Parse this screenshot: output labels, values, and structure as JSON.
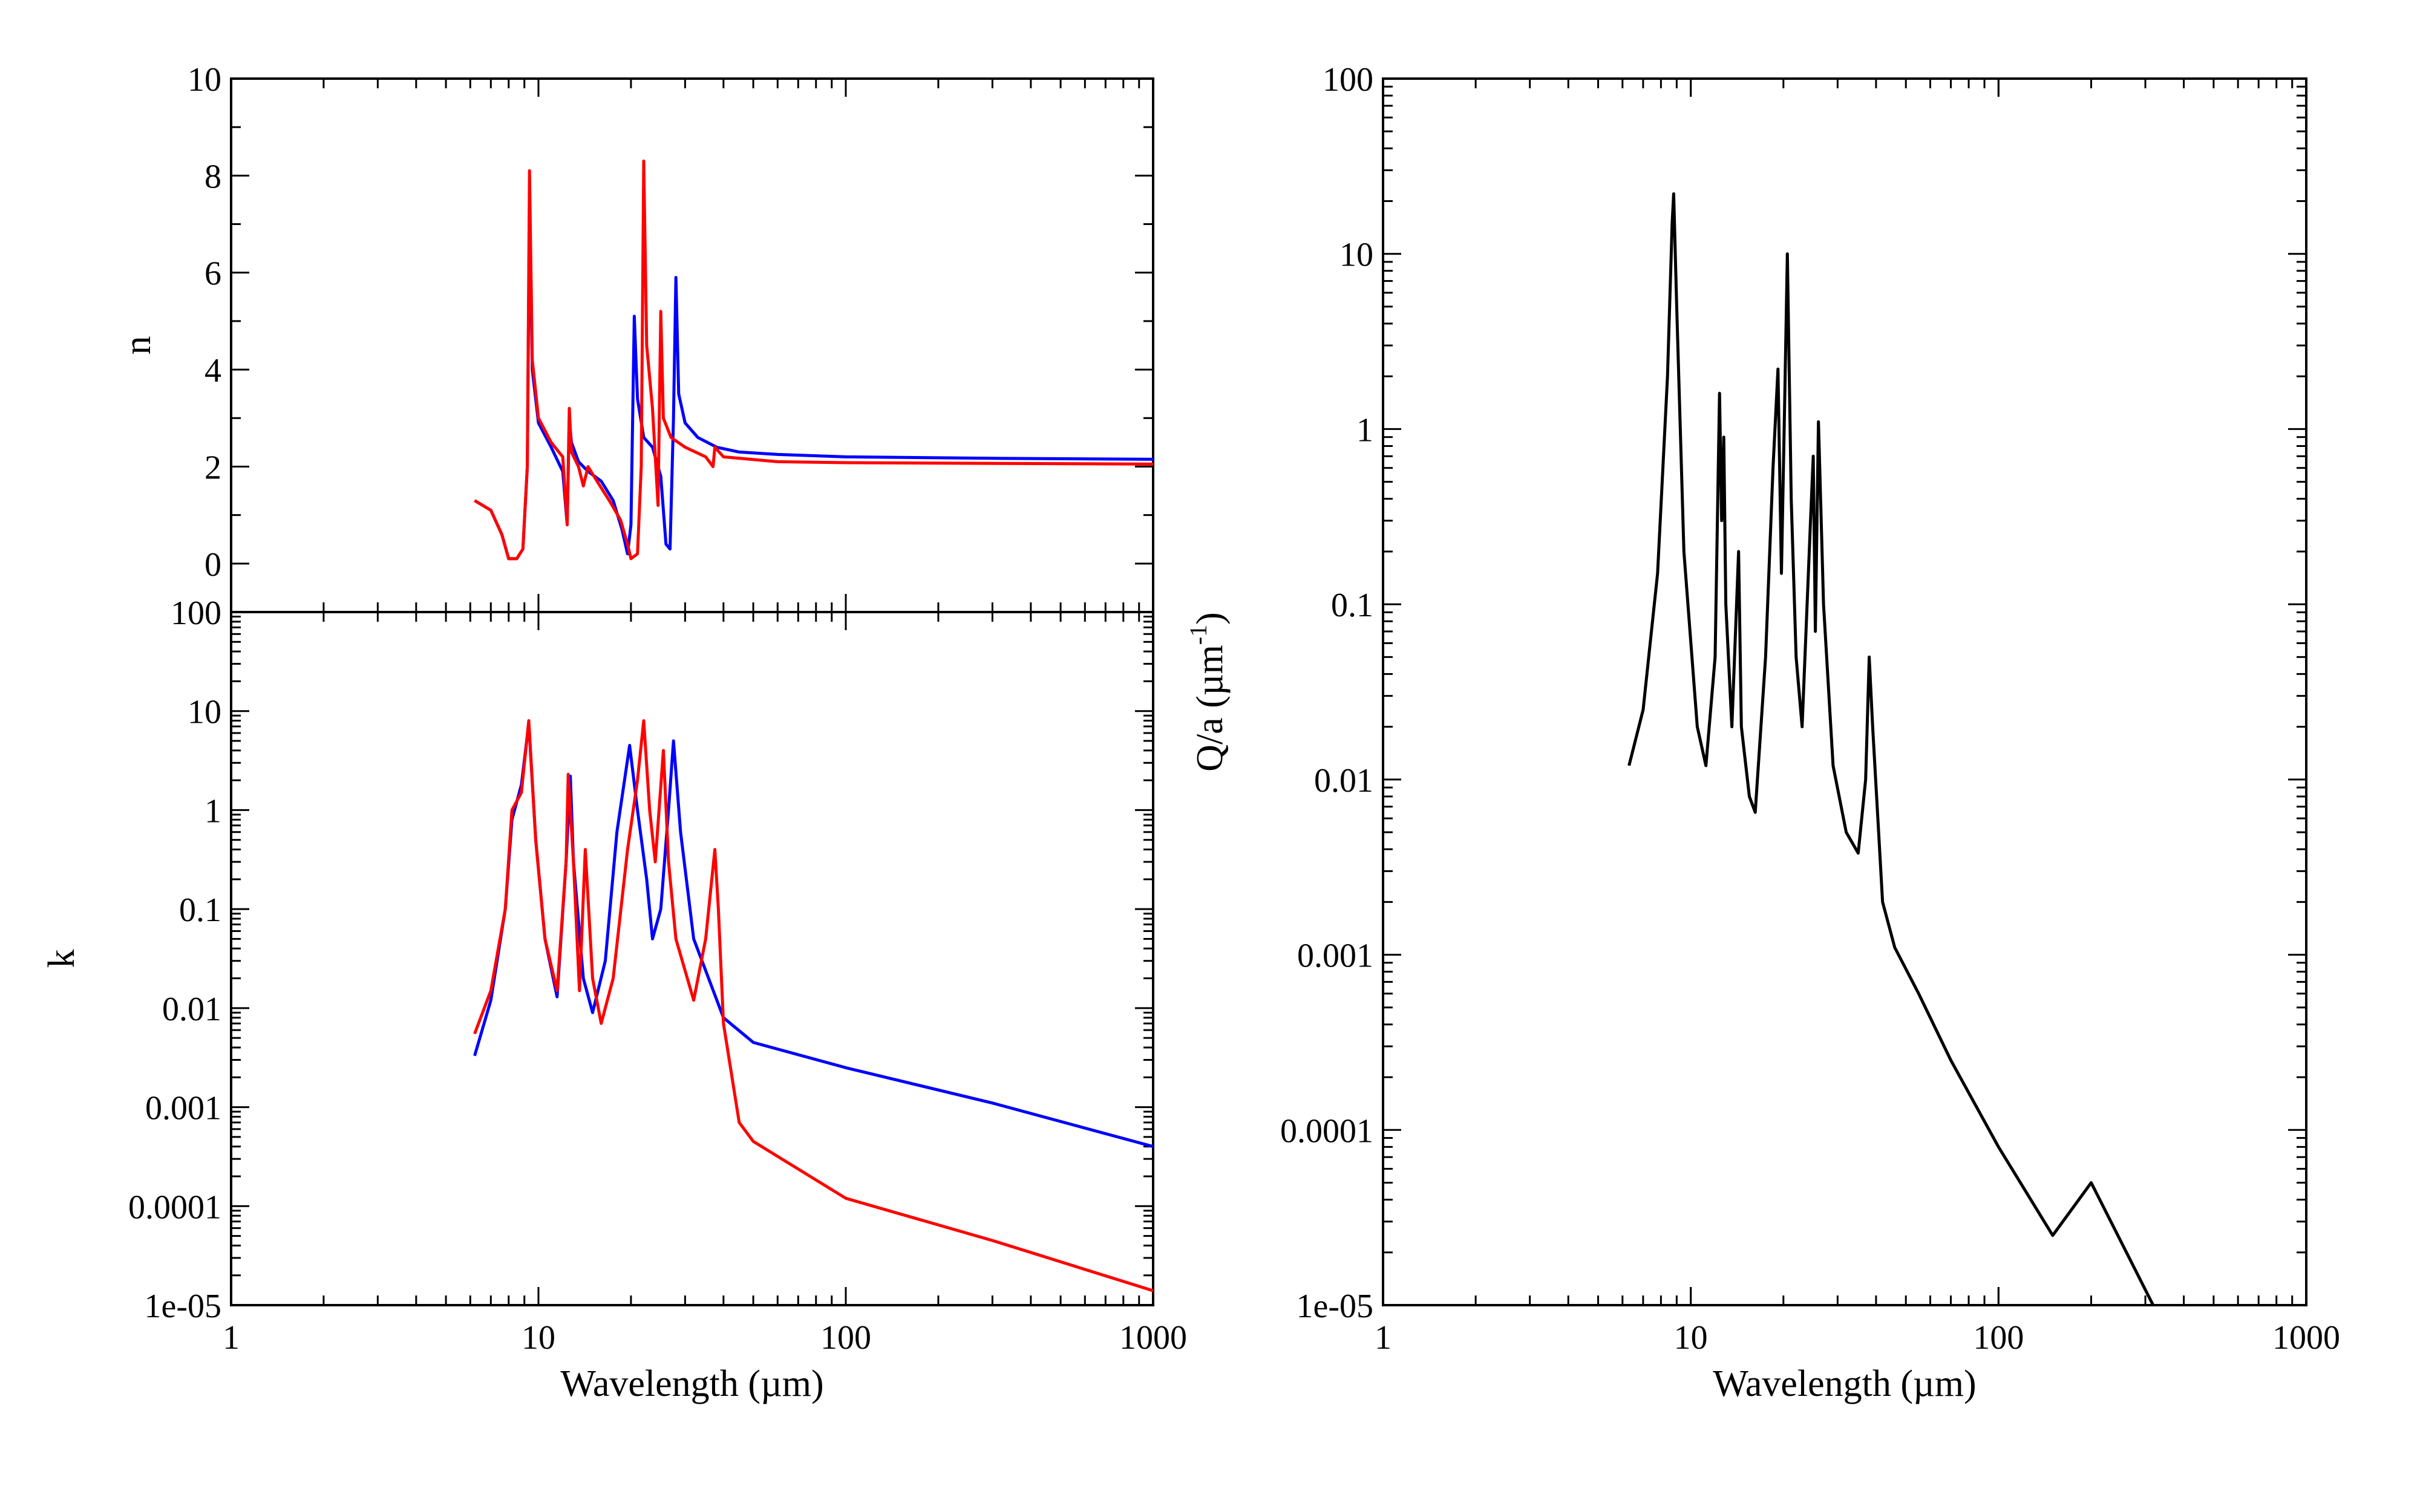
{
  "chart_data": [
    {
      "id": "n",
      "type": "line",
      "xscale": "log",
      "yscale": "linear",
      "xlim": [
        1,
        1000
      ],
      "ylim": [
        -1,
        10
      ],
      "xlabel": "",
      "ylabel": "n",
      "yticks": [
        0,
        2,
        4,
        6,
        8,
        10
      ],
      "ytick_labels": [
        "0",
        "2",
        "4",
        "6",
        "8",
        "10"
      ],
      "xticks": [
        1,
        10,
        100,
        1000
      ],
      "xtick_labels": [],
      "grid": false,
      "series": [
        {
          "color": "#0000ff",
          "points": [
            [
              6.2,
              1.3
            ],
            [
              7.0,
              1.1
            ],
            [
              7.6,
              0.6
            ],
            [
              8.0,
              0.1
            ],
            [
              8.5,
              0.1
            ],
            [
              8.9,
              0.3
            ],
            [
              9.2,
              2.0
            ],
            [
              9.35,
              7.5
            ],
            [
              9.55,
              4.0
            ],
            [
              10.0,
              2.9
            ],
            [
              11.0,
              2.4
            ],
            [
              12.0,
              1.9
            ],
            [
              12.4,
              0.8
            ],
            [
              12.6,
              3.0
            ],
            [
              12.8,
              2.5
            ],
            [
              13.5,
              2.1
            ],
            [
              14.5,
              1.9
            ],
            [
              16.0,
              1.7
            ],
            [
              17.5,
              1.3
            ],
            [
              18.7,
              0.7
            ],
            [
              19.5,
              0.2
            ],
            [
              20.0,
              0.8
            ],
            [
              20.5,
              5.1
            ],
            [
              21.0,
              3.4
            ],
            [
              22.0,
              2.6
            ],
            [
              23.5,
              2.4
            ],
            [
              25.0,
              1.8
            ],
            [
              26.0,
              0.4
            ],
            [
              26.8,
              0.3
            ],
            [
              27.5,
              3.0
            ],
            [
              28.0,
              5.9
            ],
            [
              28.6,
              3.5
            ],
            [
              30.0,
              2.9
            ],
            [
              33.0,
              2.6
            ],
            [
              38.0,
              2.4
            ],
            [
              45.0,
              2.3
            ],
            [
              60.0,
              2.25
            ],
            [
              100.0,
              2.2
            ],
            [
              300.0,
              2.17
            ],
            [
              1000.0,
              2.15
            ]
          ]
        },
        {
          "color": "#ff0000",
          "points": [
            [
              6.2,
              1.3
            ],
            [
              7.0,
              1.1
            ],
            [
              7.6,
              0.6
            ],
            [
              8.0,
              0.1
            ],
            [
              8.5,
              0.1
            ],
            [
              8.9,
              0.3
            ],
            [
              9.2,
              2.0
            ],
            [
              9.35,
              8.1
            ],
            [
              9.55,
              4.2
            ],
            [
              10.0,
              3.0
            ],
            [
              11.0,
              2.5
            ],
            [
              12.0,
              2.2
            ],
            [
              12.4,
              0.8
            ],
            [
              12.6,
              3.2
            ],
            [
              12.8,
              2.3
            ],
            [
              13.5,
              2.0
            ],
            [
              14.0,
              1.6
            ],
            [
              14.5,
              2.0
            ],
            [
              15.5,
              1.7
            ],
            [
              17.0,
              1.3
            ],
            [
              18.5,
              0.9
            ],
            [
              19.5,
              0.4
            ],
            [
              20.0,
              0.1
            ],
            [
              21.0,
              0.2
            ],
            [
              21.6,
              2.0
            ],
            [
              22.0,
              8.3
            ],
            [
              22.5,
              4.5
            ],
            [
              23.5,
              3.2
            ],
            [
              24.5,
              1.2
            ],
            [
              25.0,
              5.2
            ],
            [
              25.5,
              3.0
            ],
            [
              27.0,
              2.6
            ],
            [
              30.0,
              2.4
            ],
            [
              35.0,
              2.2
            ],
            [
              37.0,
              2.0
            ],
            [
              37.5,
              2.4
            ],
            [
              40.0,
              2.2
            ],
            [
              60.0,
              2.1
            ],
            [
              100.0,
              2.08
            ],
            [
              1000.0,
              2.05
            ]
          ]
        }
      ]
    },
    {
      "id": "k",
      "type": "line",
      "xscale": "log",
      "yscale": "log",
      "xlim": [
        1,
        1000
      ],
      "ylim": [
        1e-05,
        100
      ],
      "xlabel": "Wavelength (µm)",
      "ylabel": "k",
      "yticks": [
        1e-05,
        0.0001,
        0.001,
        0.01,
        0.1,
        1,
        10,
        100
      ],
      "ytick_labels": [
        "1e-05",
        "0.0001",
        "0.001",
        "0.01",
        "0.1",
        "1",
        "10",
        "100"
      ],
      "xticks": [
        1,
        10,
        100,
        1000
      ],
      "xtick_labels": [
        "1",
        "10",
        "100",
        "1000"
      ],
      "grid": false,
      "series": [
        {
          "color": "#0000ff",
          "points": [
            [
              6.2,
              0.0033
            ],
            [
              7.0,
              0.012
            ],
            [
              7.8,
              0.1
            ],
            [
              8.2,
              0.8
            ],
            [
              8.8,
              1.8
            ],
            [
              9.3,
              7.5
            ],
            [
              9.8,
              0.5
            ],
            [
              10.5,
              0.05
            ],
            [
              11.5,
              0.013
            ],
            [
              12.3,
              0.3
            ],
            [
              12.7,
              2.2
            ],
            [
              13.0,
              0.3
            ],
            [
              14.0,
              0.02
            ],
            [
              15.0,
              0.009
            ],
            [
              16.5,
              0.03
            ],
            [
              18.0,
              0.6
            ],
            [
              19.8,
              4.5
            ],
            [
              21.0,
              1.0
            ],
            [
              22.5,
              0.2
            ],
            [
              23.5,
              0.05
            ],
            [
              25.0,
              0.1
            ],
            [
              26.5,
              1.0
            ],
            [
              27.5,
              5.0
            ],
            [
              29.0,
              0.6
            ],
            [
              32.0,
              0.05
            ],
            [
              40.0,
              0.008
            ],
            [
              50.0,
              0.0045
            ],
            [
              100.0,
              0.0025
            ],
            [
              300.0,
              0.0011
            ],
            [
              1000.0,
              0.0004
            ]
          ]
        },
        {
          "color": "#ff0000",
          "points": [
            [
              6.2,
              0.0055
            ],
            [
              7.0,
              0.015
            ],
            [
              7.8,
              0.1
            ],
            [
              8.2,
              1.0
            ],
            [
              8.8,
              1.5
            ],
            [
              9.3,
              8.0
            ],
            [
              9.8,
              0.5
            ],
            [
              10.5,
              0.05
            ],
            [
              11.5,
              0.015
            ],
            [
              12.3,
              0.3
            ],
            [
              12.5,
              2.3
            ],
            [
              13.0,
              0.3
            ],
            [
              13.6,
              0.015
            ],
            [
              14.2,
              0.4
            ],
            [
              15.0,
              0.02
            ],
            [
              16.0,
              0.007
            ],
            [
              17.5,
              0.02
            ],
            [
              19.5,
              0.4
            ],
            [
              21.0,
              2.0
            ],
            [
              22.0,
              8.0
            ],
            [
              23.0,
              1.0
            ],
            [
              24.0,
              0.3
            ],
            [
              25.5,
              4.0
            ],
            [
              26.5,
              0.3
            ],
            [
              28.0,
              0.05
            ],
            [
              32.0,
              0.012
            ],
            [
              35.0,
              0.05
            ],
            [
              37.5,
              0.4
            ],
            [
              38.5,
              0.1
            ],
            [
              40.0,
              0.007
            ],
            [
              45.0,
              0.0007
            ],
            [
              50.0,
              0.00045
            ],
            [
              100.0,
              0.00012
            ],
            [
              300.0,
              4.5e-05
            ],
            [
              1000.0,
              1.4e-05
            ]
          ]
        }
      ]
    },
    {
      "id": "qa",
      "type": "line",
      "xscale": "log",
      "yscale": "log",
      "xlim": [
        1,
        1000
      ],
      "ylim": [
        1e-05,
        100
      ],
      "xlabel": "Wavelength (µm)",
      "ylabel": "Q/a (µm",
      "ylabel_sup": "-1",
      "ylabel_end": ")",
      "yticks": [
        1e-05,
        0.0001,
        0.001,
        0.01,
        0.1,
        1,
        10,
        100
      ],
      "ytick_labels": [
        "1e-05",
        "0.0001",
        "0.001",
        "0.01",
        "0.1",
        "1",
        "10",
        "100"
      ],
      "xticks": [
        1,
        10,
        100,
        1000
      ],
      "xtick_labels": [
        "1",
        "10",
        "100",
        "1000"
      ],
      "grid": false,
      "series": [
        {
          "color": "#000000",
          "points": [
            [
              6.3,
              0.012
            ],
            [
              7.0,
              0.025
            ],
            [
              7.8,
              0.15
            ],
            [
              8.4,
              2.0
            ],
            [
              8.7,
              15.0
            ],
            [
              8.8,
              22.0
            ],
            [
              9.0,
              5.0
            ],
            [
              9.5,
              0.2
            ],
            [
              10.5,
              0.02
            ],
            [
              11.2,
              0.012
            ],
            [
              12.0,
              0.05
            ],
            [
              12.4,
              1.6
            ],
            [
              12.6,
              0.3
            ],
            [
              12.8,
              0.9
            ],
            [
              13.0,
              0.1
            ],
            [
              13.6,
              0.02
            ],
            [
              14.3,
              0.2
            ],
            [
              14.6,
              0.02
            ],
            [
              15.5,
              0.008
            ],
            [
              16.2,
              0.0065
            ],
            [
              17.5,
              0.05
            ],
            [
              18.5,
              0.6
            ],
            [
              19.2,
              2.2
            ],
            [
              19.7,
              0.15
            ],
            [
              20.2,
              1.5
            ],
            [
              20.6,
              10.0
            ],
            [
              21.2,
              0.4
            ],
            [
              22.0,
              0.05
            ],
            [
              23.0,
              0.02
            ],
            [
              24.5,
              0.3
            ],
            [
              25.0,
              0.7
            ],
            [
              25.4,
              0.07
            ],
            [
              26.0,
              1.1
            ],
            [
              27.0,
              0.1
            ],
            [
              29.0,
              0.012
            ],
            [
              32.0,
              0.005
            ],
            [
              35.0,
              0.0038
            ],
            [
              37.0,
              0.01
            ],
            [
              38.0,
              0.05
            ],
            [
              39.0,
              0.02
            ],
            [
              42.0,
              0.002
            ],
            [
              46.0,
              0.0011
            ],
            [
              55.0,
              0.0006
            ],
            [
              70.0,
              0.00025
            ],
            [
              100.0,
              8e-05
            ],
            [
              150.0,
              2.5e-05
            ],
            [
              200.0,
              5e-05
            ],
            [
              318.0,
              1e-05
            ]
          ]
        }
      ]
    }
  ]
}
